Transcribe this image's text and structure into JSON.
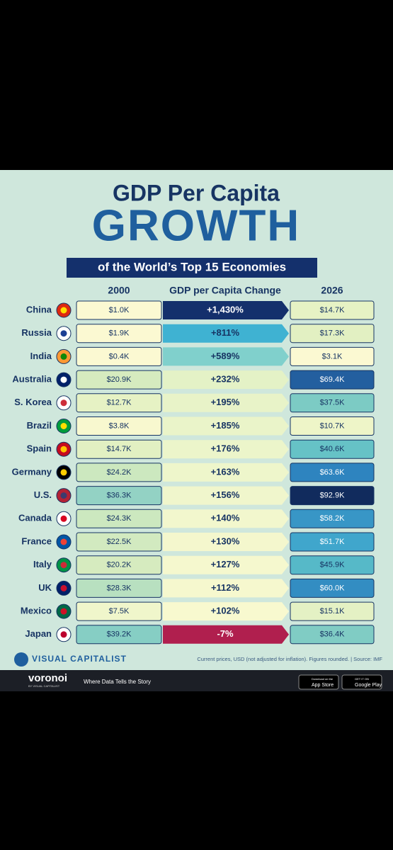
{
  "header": {
    "title_line1": "GDP Per Capita",
    "title_line2": "GROWTH",
    "subtitle": "of the World’s Top 15 Economies"
  },
  "columns": [
    "2000",
    "GDP per Capita Change",
    "2026"
  ],
  "rows": [
    {
      "country": "China",
      "gdp_2000": "$1.0K",
      "change": "+1,430%",
      "gdp_2026": "$14.7K",
      "color_2000": "#fbf9d2",
      "color_change": "#14306c",
      "color_2026": "#e6f2c4"
    },
    {
      "country": "Russia",
      "gdp_2000": "$1.9K",
      "change": "+811%",
      "gdp_2026": "$17.3K",
      "color_2000": "#fbf9d2",
      "color_change": "#3fb2d2",
      "color_2026": "#e2f0c2"
    },
    {
      "country": "India",
      "gdp_2000": "$0.4K",
      "change": "+589%",
      "gdp_2026": "$3.1K",
      "color_2000": "#fbf9d2",
      "color_change": "#80d0cc",
      "color_2026": "#fbf9d2"
    },
    {
      "country": "Australia",
      "gdp_2000": "$20.9K",
      "change": "+232%",
      "gdp_2026": "$69.4K",
      "color_2000": "#d6ebbf",
      "color_change": "#e4f2c6",
      "color_2026": "#235f9f"
    },
    {
      "country": "S. Korea",
      "gdp_2000": "$12.7K",
      "change": "+195%",
      "gdp_2026": "$37.5K",
      "color_2000": "#e6f2c4",
      "color_change": "#e8f3c8",
      "color_2026": "#7ccbc4"
    },
    {
      "country": "Brazil",
      "gdp_2000": "$3.8K",
      "change": "+185%",
      "gdp_2026": "$10.7K",
      "color_2000": "#f8f8cf",
      "color_change": "#eaf4c9",
      "color_2026": "#eef5c8"
    },
    {
      "country": "Spain",
      "gdp_2000": "$14.7K",
      "change": "+176%",
      "gdp_2026": "$40.6K",
      "color_2000": "#e2f0c2",
      "color_change": "#ecf5ca",
      "color_2026": "#66c2c6"
    },
    {
      "country": "Germany",
      "gdp_2000": "$24.2K",
      "change": "+163%",
      "gdp_2026": "$63.6K",
      "color_2000": "#cce8bf",
      "color_change": "#eef6cb",
      "color_2026": "#2e84bf"
    },
    {
      "country": "U.S.",
      "gdp_2000": "$36.3K",
      "change": "+156%",
      "gdp_2026": "$92.9K",
      "color_2000": "#93d2c4",
      "color_change": "#f0f6cc",
      "color_2026": "#112b5d"
    },
    {
      "country": "Canada",
      "gdp_2000": "$24.3K",
      "change": "+140%",
      "gdp_2026": "$58.2K",
      "color_2000": "#cce8bf",
      "color_change": "#f2f7cd",
      "color_2026": "#3896c6"
    },
    {
      "country": "France",
      "gdp_2000": "$22.5K",
      "change": "+130%",
      "gdp_2026": "$51.7K",
      "color_2000": "#d2eac0",
      "color_change": "#f4f7cd",
      "color_2026": "#40a6cc"
    },
    {
      "country": "Italy",
      "gdp_2000": "$20.2K",
      "change": "+127%",
      "gdp_2026": "$45.9K",
      "color_2000": "#d6ebbf",
      "color_change": "#f5f8ce",
      "color_2026": "#56b9c8"
    },
    {
      "country": "UK",
      "gdp_2000": "$28.3K",
      "change": "+112%",
      "gdp_2026": "$60.0K",
      "color_2000": "#b8e0c0",
      "color_change": "#f6f8ce",
      "color_2026": "#338dc2"
    },
    {
      "country": "Mexico",
      "gdp_2000": "$7.5K",
      "change": "+102%",
      "gdp_2026": "$15.1K",
      "color_2000": "#f0f6cb",
      "color_change": "#f8f9cf",
      "color_2026": "#e4f1c4"
    },
    {
      "country": "Japan",
      "gdp_2000": "$39.2K",
      "change": "-7%",
      "gdp_2026": "$36.4K",
      "color_2000": "#86cec4",
      "color_change": "#b01f4e",
      "color_2026": "#80ccc4"
    }
  ],
  "footer": {
    "brand": "VISUAL CAPITALIST",
    "note": "Current prices, USD (not adjusted for inflation). Figures rounded. | Source: IMF",
    "app": "voronoi",
    "app_by": "BY VISUAL CAPITALIST",
    "tagline": "Where Data Tells the Story",
    "appstore_small": "Download on the",
    "appstore": "App Store",
    "gplay_small": "GET IT ON",
    "gplay": "Google Play"
  }
}
